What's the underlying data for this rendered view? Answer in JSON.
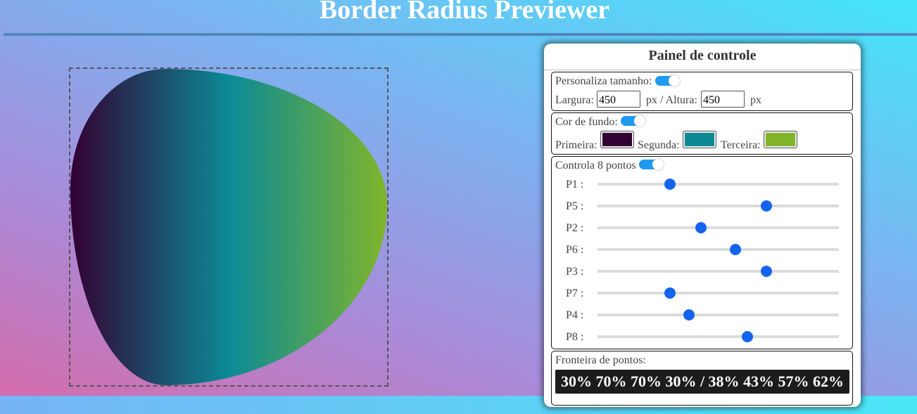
{
  "header": {
    "title": "Border Radius Previewer"
  },
  "panel": {
    "title": "Painel de controle",
    "size": {
      "label": "Personaliza tamanho:",
      "enabled": true,
      "width_label": "Largura:",
      "width": 450,
      "height_label": "px / Altura:",
      "height": 450,
      "unit": "px"
    },
    "background": {
      "label": "Cor de fundo:",
      "enabled": true,
      "colors": [
        {
          "label": "Primeira:",
          "color": "#330033"
        },
        {
          "label": "Segunda:",
          "color": "#0b8a96"
        },
        {
          "label": "Terceira:",
          "color": "#80b52a"
        }
      ]
    },
    "points": {
      "label": "Controla 8 pontos",
      "enabled": true,
      "sliders": [
        {
          "label": "P1 :",
          "value": 30
        },
        {
          "label": "P5 :",
          "value": 70
        },
        {
          "label": "P2 :",
          "value": 43
        },
        {
          "label": "P6 :",
          "value": 57
        },
        {
          "label": "P3 :",
          "value": 70
        },
        {
          "label": "P7 :",
          "value": 30
        },
        {
          "label": "P4 :",
          "value": 38
        },
        {
          "label": "P8 :",
          "value": 62
        }
      ]
    },
    "output": {
      "label": "Fronteira de pontos:",
      "value": "30% 70% 70% 30% / 38% 43% 57% 62%"
    }
  }
}
